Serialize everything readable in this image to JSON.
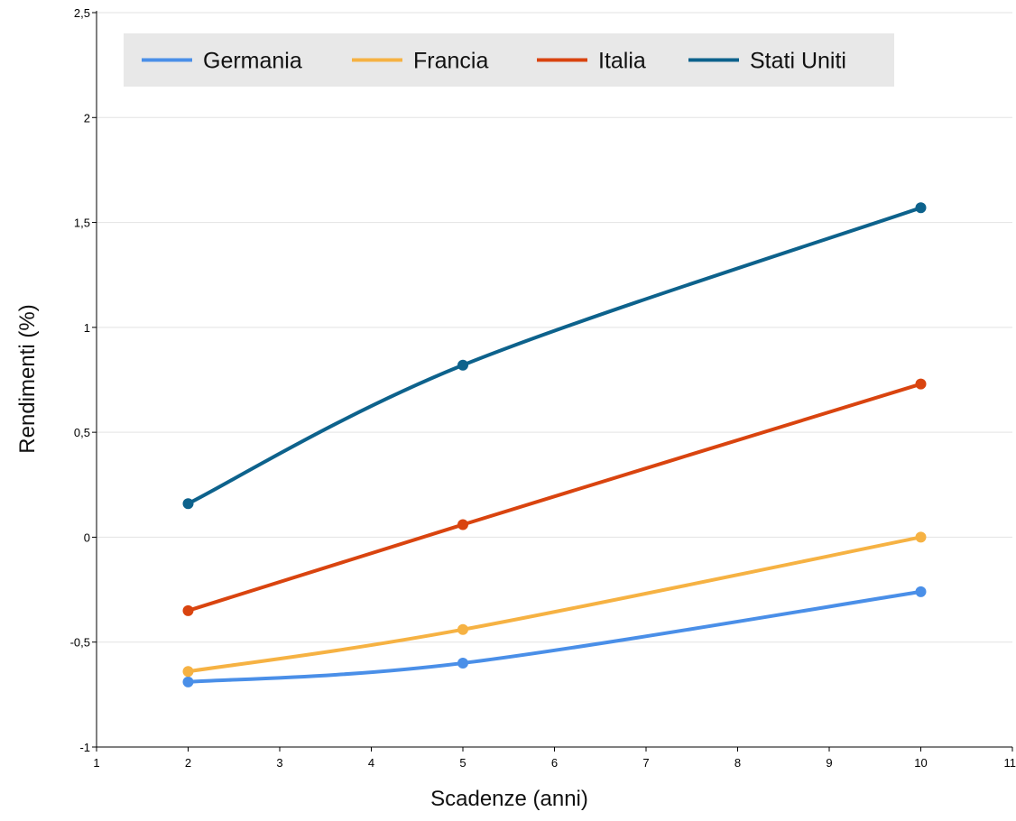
{
  "chart_data": {
    "type": "line",
    "title": "",
    "xlabel": "Scadenze (anni)",
    "ylabel": "Rendimenti (%)",
    "xlim": [
      1,
      11
    ],
    "ylim": [
      -1,
      2.5
    ],
    "x_ticks": [
      "1",
      "2",
      "3",
      "4",
      "5",
      "6",
      "7",
      "8",
      "9",
      "10",
      "11"
    ],
    "y_ticks": [
      "-1",
      "-0,5",
      "0",
      "0,5",
      "1",
      "1,5",
      "2",
      "2,5"
    ],
    "grid": "horizontal",
    "legend_position": "top-left",
    "x": [
      2,
      5,
      10
    ],
    "series": [
      {
        "name": "Germania",
        "color": "#4a8fe8",
        "values": [
          -0.69,
          -0.6,
          -0.26
        ]
      },
      {
        "name": "Francia",
        "color": "#f6b243",
        "values": [
          -0.64,
          -0.44,
          0.0
        ]
      },
      {
        "name": "Italia",
        "color": "#d9440f",
        "values": [
          -0.35,
          0.06,
          0.73
        ]
      },
      {
        "name": "Stati Uniti",
        "color": "#0d628c",
        "values": [
          0.16,
          0.82,
          1.57
        ]
      }
    ]
  }
}
